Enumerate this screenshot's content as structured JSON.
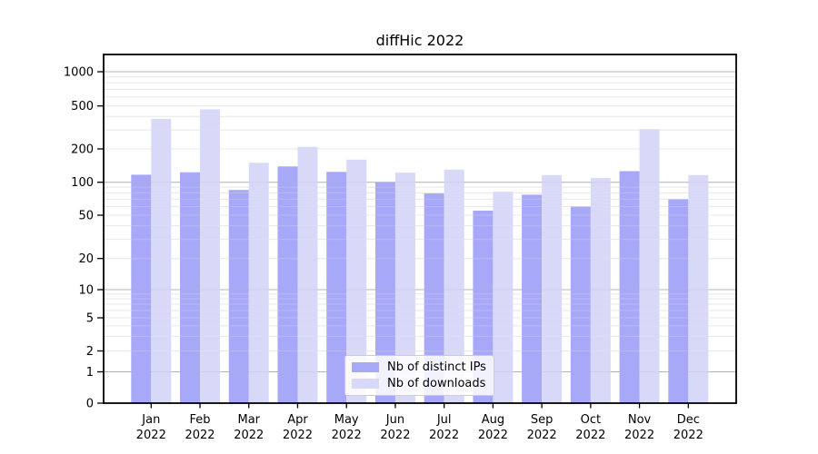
{
  "chart_data": {
    "type": "bar",
    "title": "diffHic 2022",
    "categories": [
      "Jan",
      "Feb",
      "Mar",
      "Apr",
      "May",
      "Jun",
      "Jul",
      "Aug",
      "Sep",
      "Oct",
      "Nov",
      "Dec"
    ],
    "x_year": "2022",
    "series": [
      {
        "key": "ips",
        "name": "Nb of distinct IPs",
        "color": "#a8a8f8",
        "values": [
          117,
          123,
          85,
          139,
          124,
          100,
          79,
          55,
          77,
          60,
          126,
          70
        ]
      },
      {
        "key": "downloads",
        "name": "Nb of downloads",
        "color": "#d8d8f8",
        "values": [
          380,
          465,
          150,
          209,
          160,
          122,
          130,
          82,
          116,
          109,
          305,
          116
        ]
      }
    ],
    "y_ticks": [
      0,
      1,
      2,
      5,
      10,
      20,
      50,
      100,
      200,
      500,
      1000
    ],
    "y_scale": "log",
    "ylim": [
      0,
      1420
    ],
    "grid": true,
    "legend_position": "lower center"
  }
}
